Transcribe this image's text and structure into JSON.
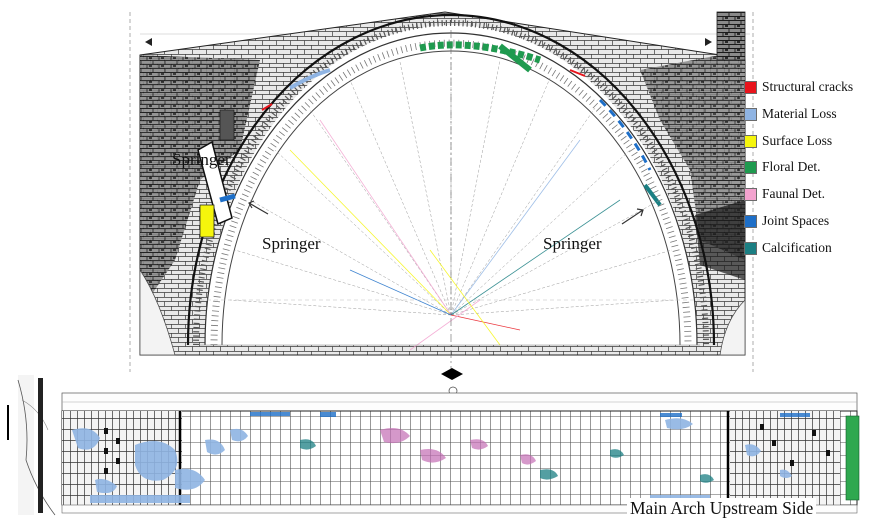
{
  "legend": {
    "items": [
      {
        "label": "Structural cracks",
        "color": "#e8141c"
      },
      {
        "label": "Material Loss",
        "color": "#8fb4e3"
      },
      {
        "label": "Surface Loss",
        "color": "#f5f50c"
      },
      {
        "label": "Floral Det.",
        "color": "#1f9a4f"
      },
      {
        "label": "Faunal Det.",
        "color": "#f3a3cf"
      },
      {
        "label": "Joint Spaces",
        "color": "#1e6fc8"
      },
      {
        "label": "Calcification",
        "color": "#1b7f83"
      }
    ]
  },
  "elevation": {
    "springer_labels": [
      "Springer",
      "Springer",
      "Springer"
    ]
  },
  "developed_view": {
    "caption": "Main Arch Upstream Side"
  },
  "icons": {
    "direction": "double-arrow-icon",
    "springer_pointer": "arrow-icon"
  }
}
